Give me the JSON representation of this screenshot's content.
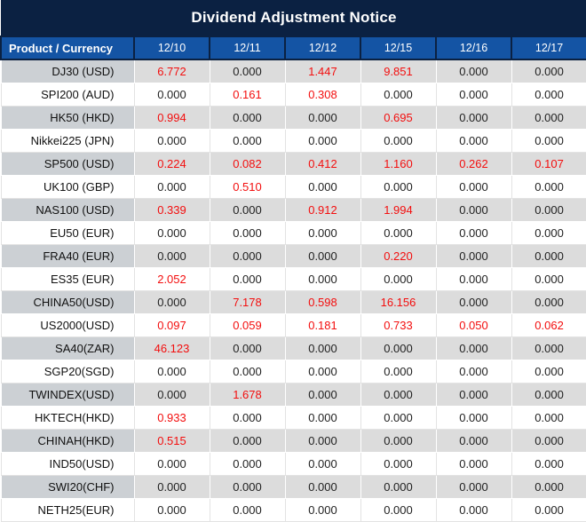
{
  "title": "Dividend Adjustment Notice",
  "colors": {
    "navy": "#0b2142",
    "header_blue": "#1454a4",
    "red": "#f30e0e",
    "gray_row": "#dcdcdc",
    "gray_product": "#ccd0d4"
  },
  "table": {
    "product_header": "Product / Currency",
    "date_columns": [
      "12/10",
      "12/11",
      "12/12",
      "12/15",
      "12/16",
      "12/17"
    ],
    "zero_value": "0.000",
    "rows": [
      {
        "product": "DJ30 (USD)",
        "values": [
          "6.772",
          "0.000",
          "1.447",
          "9.851",
          "0.000",
          "0.000"
        ]
      },
      {
        "product": "SPI200 (AUD)",
        "values": [
          "0.000",
          "0.161",
          "0.308",
          "0.000",
          "0.000",
          "0.000"
        ]
      },
      {
        "product": "HK50 (HKD)",
        "values": [
          "0.994",
          "0.000",
          "0.000",
          "0.695",
          "0.000",
          "0.000"
        ]
      },
      {
        "product": "Nikkei225 (JPN)",
        "values": [
          "0.000",
          "0.000",
          "0.000",
          "0.000",
          "0.000",
          "0.000"
        ]
      },
      {
        "product": "SP500 (USD)",
        "values": [
          "0.224",
          "0.082",
          "0.412",
          "1.160",
          "0.262",
          "0.107"
        ]
      },
      {
        "product": "UK100 (GBP)",
        "values": [
          "0.000",
          "0.510",
          "0.000",
          "0.000",
          "0.000",
          "0.000"
        ]
      },
      {
        "product": "NAS100 (USD)",
        "values": [
          "0.339",
          "0.000",
          "0.912",
          "1.994",
          "0.000",
          "0.000"
        ]
      },
      {
        "product": "EU50 (EUR)",
        "values": [
          "0.000",
          "0.000",
          "0.000",
          "0.000",
          "0.000",
          "0.000"
        ]
      },
      {
        "product": "FRA40 (EUR)",
        "values": [
          "0.000",
          "0.000",
          "0.000",
          "0.220",
          "0.000",
          "0.000"
        ]
      },
      {
        "product": "ES35 (EUR)",
        "values": [
          "2.052",
          "0.000",
          "0.000",
          "0.000",
          "0.000",
          "0.000"
        ]
      },
      {
        "product": "CHINA50(USD)",
        "values": [
          "0.000",
          "7.178",
          "0.598",
          "16.156",
          "0.000",
          "0.000"
        ]
      },
      {
        "product": "US2000(USD)",
        "values": [
          "0.097",
          "0.059",
          "0.181",
          "0.733",
          "0.050",
          "0.062"
        ]
      },
      {
        "product": "SA40(ZAR)",
        "values": [
          "46.123",
          "0.000",
          "0.000",
          "0.000",
          "0.000",
          "0.000"
        ]
      },
      {
        "product": "SGP20(SGD)",
        "values": [
          "0.000",
          "0.000",
          "0.000",
          "0.000",
          "0.000",
          "0.000"
        ]
      },
      {
        "product": "TWINDEX(USD)",
        "values": [
          "0.000",
          "1.678",
          "0.000",
          "0.000",
          "0.000",
          "0.000"
        ]
      },
      {
        "product": "HKTECH(HKD)",
        "values": [
          "0.933",
          "0.000",
          "0.000",
          "0.000",
          "0.000",
          "0.000"
        ]
      },
      {
        "product": "CHINAH(HKD)",
        "values": [
          "0.515",
          "0.000",
          "0.000",
          "0.000",
          "0.000",
          "0.000"
        ]
      },
      {
        "product": "IND50(USD)",
        "values": [
          "0.000",
          "0.000",
          "0.000",
          "0.000",
          "0.000",
          "0.000"
        ]
      },
      {
        "product": "SWI20(CHF)",
        "values": [
          "0.000",
          "0.000",
          "0.000",
          "0.000",
          "0.000",
          "0.000"
        ]
      },
      {
        "product": "NETH25(EUR)",
        "values": [
          "0.000",
          "0.000",
          "0.000",
          "0.000",
          "0.000",
          "0.000"
        ]
      }
    ]
  }
}
